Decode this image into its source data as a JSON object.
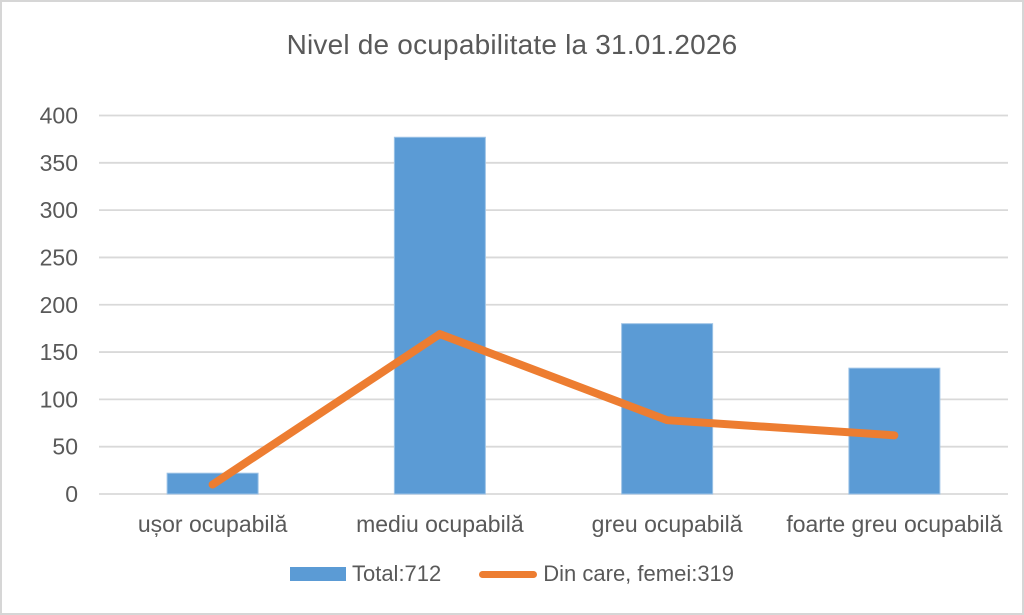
{
  "chart_data": {
    "type": "combo",
    "title": "Nivel de ocupabilitate la 31.01.2026",
    "categories": [
      "ușor ocupabilă",
      "mediu ocupabilă",
      "greu ocupabilă",
      "foarte greu ocupabilă"
    ],
    "series": [
      {
        "name": "Total:712",
        "type": "bar",
        "color": "#5B9BD5",
        "values": [
          22,
          377,
          180,
          133
        ]
      },
      {
        "name": "Din care, femei:319",
        "type": "line",
        "color": "#ED7D31",
        "values": [
          10,
          169,
          78,
          62
        ]
      }
    ],
    "ylim": [
      0,
      400
    ],
    "ytick_step": 50,
    "yticks": [
      0,
      50,
      100,
      150,
      200,
      250,
      300,
      350,
      400
    ],
    "grid": true,
    "gridline_color": "#D9D9D9",
    "text_color": "#595959",
    "legend_position": "bottom",
    "xlabel": "",
    "ylabel": ""
  }
}
